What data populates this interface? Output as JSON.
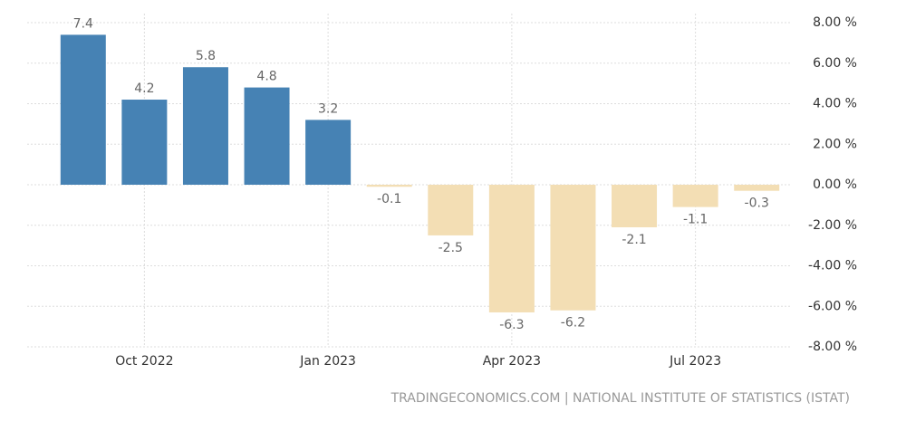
{
  "chart_data": {
    "type": "bar",
    "categories": [
      null,
      "Oct 2022",
      null,
      null,
      "Jan 2023",
      null,
      null,
      "Apr 2023",
      null,
      null,
      "Jul 2023",
      null
    ],
    "values": [
      7.4,
      4.2,
      5.8,
      4.8,
      3.2,
      -0.1,
      -2.5,
      -6.3,
      -6.2,
      -2.1,
      -1.1,
      -0.3
    ],
    "positive_color": "#4682b4",
    "negative_color": "#f3deb4",
    "ylim": [
      -8,
      8
    ],
    "yticks": [
      {
        "value": 8,
        "label": "8.00 %"
      },
      {
        "value": 6,
        "label": "6.00 %"
      },
      {
        "value": 4,
        "label": "4.00 %"
      },
      {
        "value": 2,
        "label": "2.00 %"
      },
      {
        "value": 0,
        "label": "0.00 %"
      },
      {
        "value": -2,
        "label": "-2.00 %"
      },
      {
        "value": -4,
        "label": "-4.00 %"
      },
      {
        "value": -6,
        "label": "-6.00 %"
      },
      {
        "value": -8,
        "label": "-8.00 %"
      }
    ],
    "grid": true,
    "source": "TRADINGECONOMICS.COM | NATIONAL INSTITUTE OF STATISTICS (ISTAT)"
  }
}
